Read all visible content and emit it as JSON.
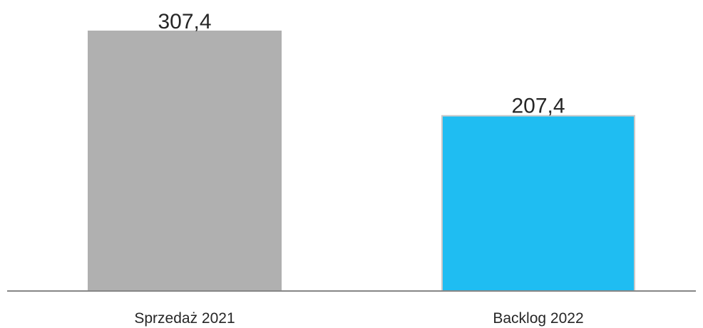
{
  "chart_data": {
    "type": "bar",
    "categories": [
      "Sprzedaż 2021",
      "Backlog 2022"
    ],
    "values": [
      307.4,
      207.4
    ],
    "data_labels": [
      "307,4",
      "207,4"
    ],
    "colors": [
      "#b0b0b0",
      "#1fbdf2"
    ],
    "edge_colors": [
      "#b0b0b0",
      "#c9c9c9"
    ],
    "axis_color": "#868686",
    "ylim": [
      0,
      307.4
    ],
    "grid": false,
    "legend": "none",
    "title": "",
    "xlabel": "",
    "ylabel": ""
  }
}
